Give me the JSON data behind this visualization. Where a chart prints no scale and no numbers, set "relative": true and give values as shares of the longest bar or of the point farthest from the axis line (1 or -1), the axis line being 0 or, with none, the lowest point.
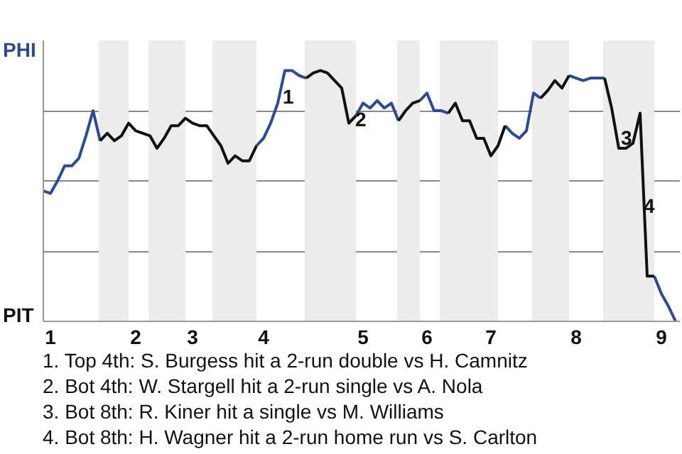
{
  "chart_data": {
    "type": "line",
    "relative": true,
    "grid": "y",
    "marker": "none",
    "line_style": "solid",
    "categories": [
      null,
      "1",
      null,
      null,
      null,
      null,
      null,
      null,
      null,
      null,
      null,
      null,
      null,
      "2",
      null,
      null,
      null,
      null,
      null,
      null,
      null,
      "3",
      null,
      null,
      null,
      null,
      null,
      null,
      null,
      null,
      null,
      "4",
      null,
      null,
      null,
      null,
      null,
      null,
      null,
      null,
      null,
      null,
      null,
      null,
      null,
      "5",
      null,
      null,
      null,
      null,
      null,
      null,
      null,
      null,
      "6",
      null,
      null,
      null,
      null,
      null,
      null,
      null,
      null,
      "7",
      null,
      null,
      null,
      null,
      null,
      null,
      null,
      null,
      null,
      null,
      null,
      "8",
      null,
      null,
      null,
      null,
      null,
      null,
      null,
      null,
      null,
      null,
      null,
      "9",
      null,
      null
    ],
    "series": [
      {
        "color": "#2b4a9c",
        "values": [
          0.52,
          0.51,
          0.56,
          0.62,
          0.62,
          0.65,
          0.74,
          0.84,
          0.72,
          null,
          null,
          null,
          null,
          null,
          null,
          null,
          null,
          null,
          null,
          null,
          null,
          null,
          null,
          null,
          null,
          null,
          null,
          null,
          null,
          null,
          0.7,
          0.73,
          0.79,
          0.87,
          1,
          1,
          0.98,
          0.97,
          null,
          null,
          null,
          null,
          null,
          null,
          0.82,
          0.87,
          0.85,
          0.88,
          0.85,
          0.87,
          0.8,
          null,
          null,
          0.88,
          0.91,
          0.84,
          0.84,
          0.83,
          null,
          null,
          null,
          null,
          null,
          null,
          null,
          0.78,
          0.75,
          0.73,
          0.76,
          0.91,
          0.89,
          null,
          null,
          null,
          0.98,
          0.97,
          0.96,
          0.97,
          0.97,
          0.97,
          null,
          null,
          null,
          null,
          null,
          null,
          0.18,
          0.11,
          0.06,
          0
        ]
      },
      {
        "color": "#111111",
        "values": [
          null,
          null,
          null,
          null,
          null,
          null,
          null,
          null,
          0.72,
          0.75,
          0.72,
          0.74,
          0.79,
          0.76,
          0.75,
          0.74,
          0.69,
          0.73,
          0.78,
          0.78,
          0.81,
          0.79,
          0.78,
          0.78,
          0.74,
          0.7,
          0.63,
          0.66,
          0.64,
          0.64,
          0.7,
          null,
          null,
          null,
          null,
          null,
          null,
          0.97,
          0.99,
          1,
          0.99,
          0.96,
          0.93,
          0.79,
          0.82,
          null,
          null,
          null,
          null,
          null,
          0.8,
          0.84,
          0.87,
          0.88,
          null,
          null,
          null,
          0.83,
          0.87,
          0.8,
          0.8,
          0.73,
          0.73,
          0.66,
          0.7,
          0.78,
          null,
          null,
          null,
          null,
          0.89,
          0.92,
          0.96,
          0.93,
          0.98,
          null,
          null,
          null,
          null,
          0.97,
          0.85,
          0.69,
          0.69,
          0.71,
          0.83,
          0.18,
          0.18,
          null,
          null,
          null
        ]
      }
    ],
    "annotations": [
      "PHI",
      "PIT",
      "1",
      "2",
      "3",
      "4",
      "1. Top 4th: S. Burgess hit a 2-run double vs H. Camnitz",
      "2. Bot 4th: W. Stargell hit a 2-run single vs A. Nola",
      "3. Bot 8th: R. Kiner hit a single vs M. Williams",
      "4. Bot 8th: H. Wagner hit a 2-run home run vs S. Carlton"
    ]
  }
}
